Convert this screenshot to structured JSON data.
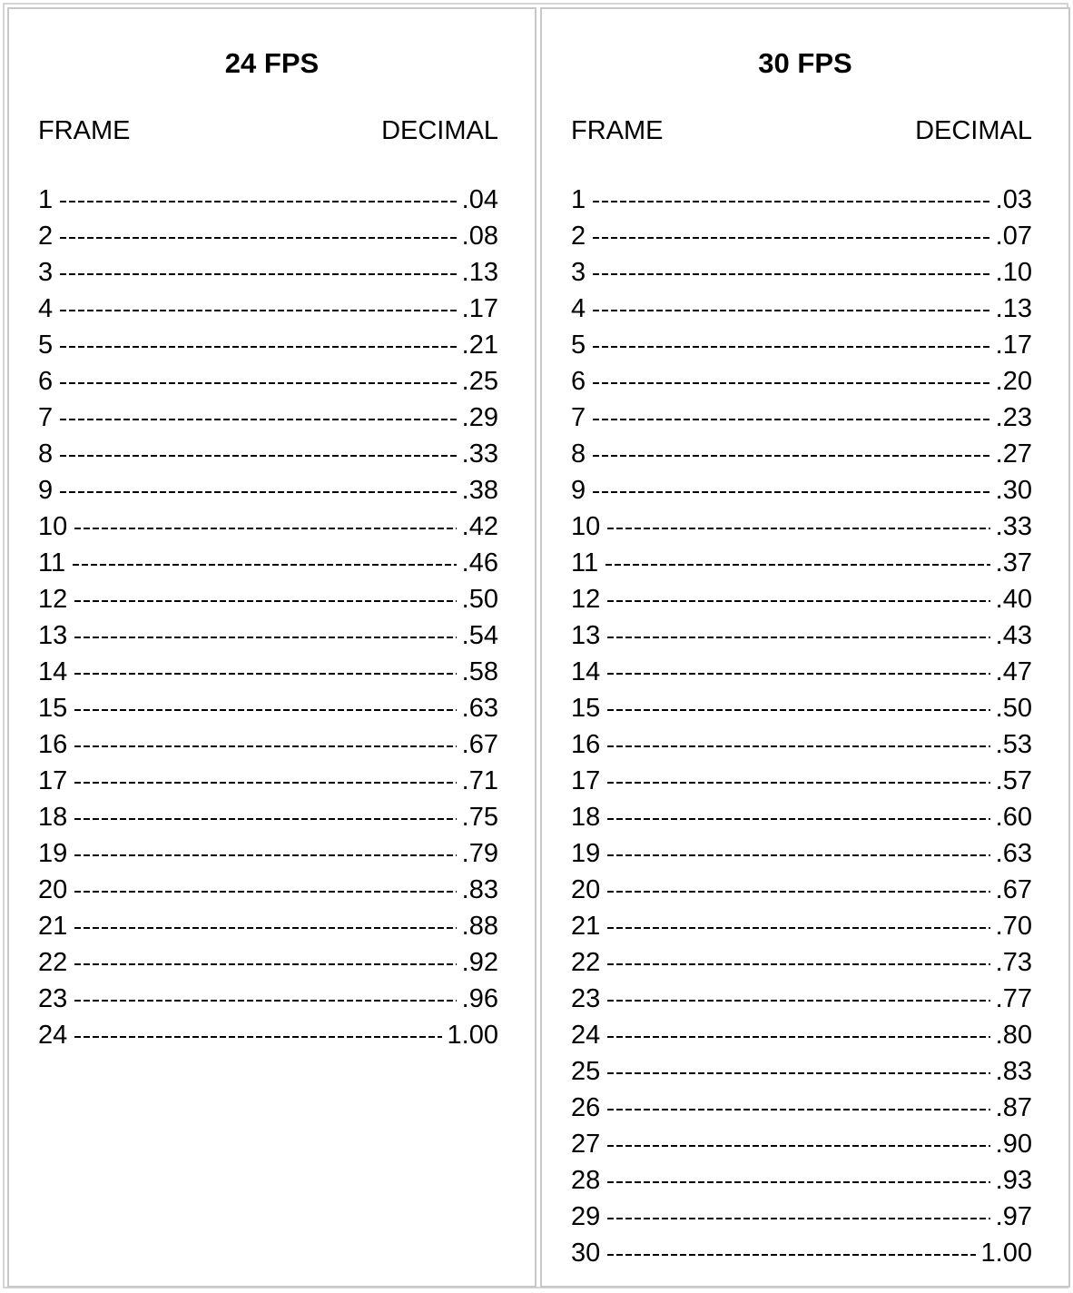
{
  "tables": [
    {
      "title": "24 FPS",
      "frame_header": "FRAME",
      "decimal_header": "DECIMAL",
      "rows": [
        {
          "frame": "1",
          "decimal": ".04"
        },
        {
          "frame": "2",
          "decimal": ".08"
        },
        {
          "frame": "3",
          "decimal": ".13"
        },
        {
          "frame": "4",
          "decimal": ".17"
        },
        {
          "frame": "5",
          "decimal": ".21"
        },
        {
          "frame": "6",
          "decimal": ".25"
        },
        {
          "frame": "7",
          "decimal": ".29"
        },
        {
          "frame": "8",
          "decimal": ".33"
        },
        {
          "frame": "9",
          "decimal": ".38"
        },
        {
          "frame": "10",
          "decimal": ".42"
        },
        {
          "frame": "11",
          "decimal": ".46"
        },
        {
          "frame": "12",
          "decimal": ".50"
        },
        {
          "frame": "13",
          "decimal": ".54"
        },
        {
          "frame": "14",
          "decimal": ".58"
        },
        {
          "frame": "15",
          "decimal": ".63"
        },
        {
          "frame": "16",
          "decimal": ".67"
        },
        {
          "frame": "17",
          "decimal": ".71"
        },
        {
          "frame": "18",
          "decimal": ".75"
        },
        {
          "frame": "19",
          "decimal": ".79"
        },
        {
          "frame": "20",
          "decimal": ".83"
        },
        {
          "frame": "21",
          "decimal": ".88"
        },
        {
          "frame": "22",
          "decimal": ".92"
        },
        {
          "frame": "23",
          "decimal": ".96"
        },
        {
          "frame": "24",
          "decimal": "1.00"
        }
      ]
    },
    {
      "title": "30 FPS",
      "frame_header": "FRAME",
      "decimal_header": "DECIMAL",
      "rows": [
        {
          "frame": "1",
          "decimal": ".03"
        },
        {
          "frame": "2",
          "decimal": ".07"
        },
        {
          "frame": "3",
          "decimal": ".10"
        },
        {
          "frame": "4",
          "decimal": ".13"
        },
        {
          "frame": "5",
          "decimal": ".17"
        },
        {
          "frame": "6",
          "decimal": ".20"
        },
        {
          "frame": "7",
          "decimal": ".23"
        },
        {
          "frame": "8",
          "decimal": ".27"
        },
        {
          "frame": "9",
          "decimal": ".30"
        },
        {
          "frame": "10",
          "decimal": ".33"
        },
        {
          "frame": "11",
          "decimal": ".37"
        },
        {
          "frame": "12",
          "decimal": ".40"
        },
        {
          "frame": "13",
          "decimal": ".43"
        },
        {
          "frame": "14",
          "decimal": ".47"
        },
        {
          "frame": "15",
          "decimal": ".50"
        },
        {
          "frame": "16",
          "decimal": ".53"
        },
        {
          "frame": "17",
          "decimal": ".57"
        },
        {
          "frame": "18",
          "decimal": ".60"
        },
        {
          "frame": "19",
          "decimal": ".63"
        },
        {
          "frame": "20",
          "decimal": ".67"
        },
        {
          "frame": "21",
          "decimal": ".70"
        },
        {
          "frame": "22",
          "decimal": ".73"
        },
        {
          "frame": "23",
          "decimal": ".77"
        },
        {
          "frame": "24",
          "decimal": ".80"
        },
        {
          "frame": "25",
          "decimal": ".83"
        },
        {
          "frame": "26",
          "decimal": ".87"
        },
        {
          "frame": "27",
          "decimal": ".90"
        },
        {
          "frame": "28",
          "decimal": ".93"
        },
        {
          "frame": "29",
          "decimal": ".97"
        },
        {
          "frame": "30",
          "decimal": "1.00"
        }
      ]
    }
  ]
}
